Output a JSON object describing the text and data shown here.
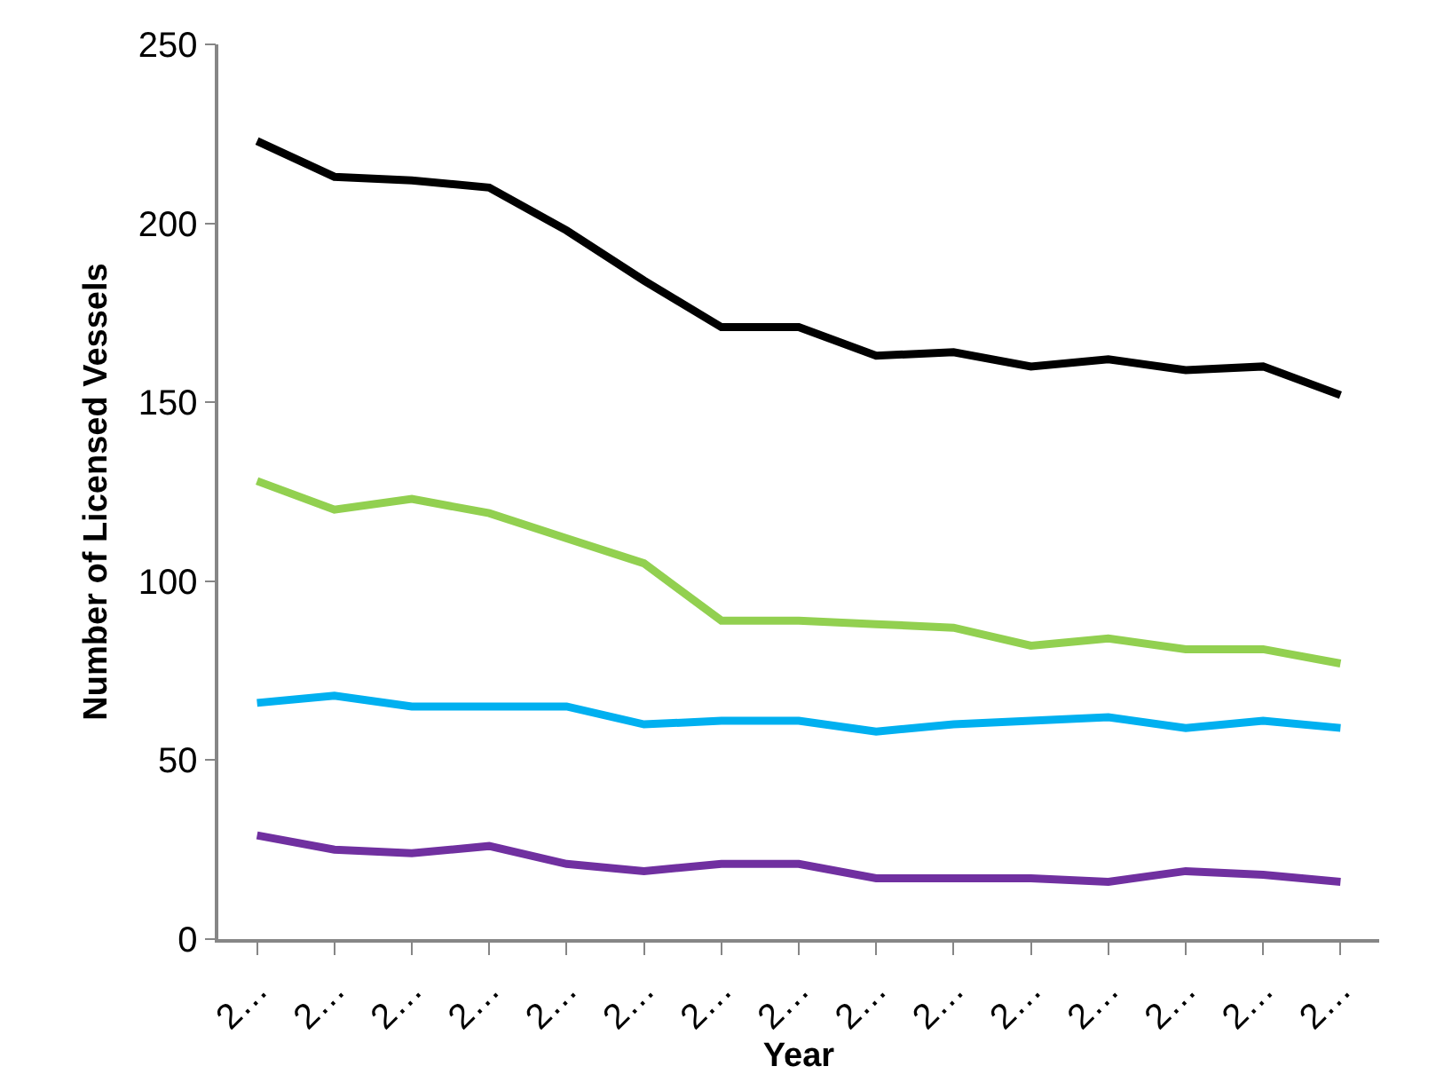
{
  "chart_data": {
    "type": "line",
    "xlabel": "Year",
    "ylabel": "Number of Licensed Vessels",
    "categories": [
      "2…",
      "2…",
      "2…",
      "2…",
      "2…",
      "2…",
      "2…",
      "2…",
      "2…",
      "2…",
      "2…",
      "2…",
      "2…",
      "2…",
      "2…"
    ],
    "series": [
      {
        "color": "#000000",
        "values": [
          223,
          213,
          212,
          210,
          198,
          184,
          171,
          171,
          163,
          164,
          160,
          162,
          159,
          160,
          152
        ]
      },
      {
        "color": "#92d050",
        "values": [
          128,
          120,
          123,
          119,
          112,
          105,
          89,
          89,
          88,
          87,
          82,
          84,
          81,
          81,
          77
        ]
      },
      {
        "color": "#00b0f0",
        "values": [
          66,
          68,
          65,
          65,
          65,
          60,
          61,
          61,
          58,
          60,
          61,
          62,
          59,
          61,
          59
        ]
      },
      {
        "color": "#7030a0",
        "values": [
          29,
          25,
          24,
          26,
          21,
          19,
          21,
          21,
          17,
          17,
          17,
          16,
          19,
          18,
          16
        ]
      }
    ],
    "ylim": [
      0,
      250
    ],
    "yticks": [
      0,
      50,
      100,
      150,
      200,
      250
    ],
    "marker": "none",
    "line_style": "solid"
  }
}
